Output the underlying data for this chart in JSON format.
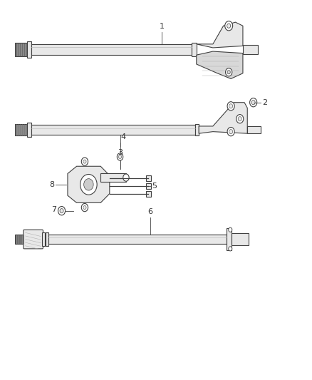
{
  "bg_color": "#ffffff",
  "line_color": "#404040",
  "fill_color": "#d8d8d8",
  "light_fill": "#e8e8e8",
  "dark_fill": "#888888",
  "label_color": "#333333",
  "fontsize": 8
}
